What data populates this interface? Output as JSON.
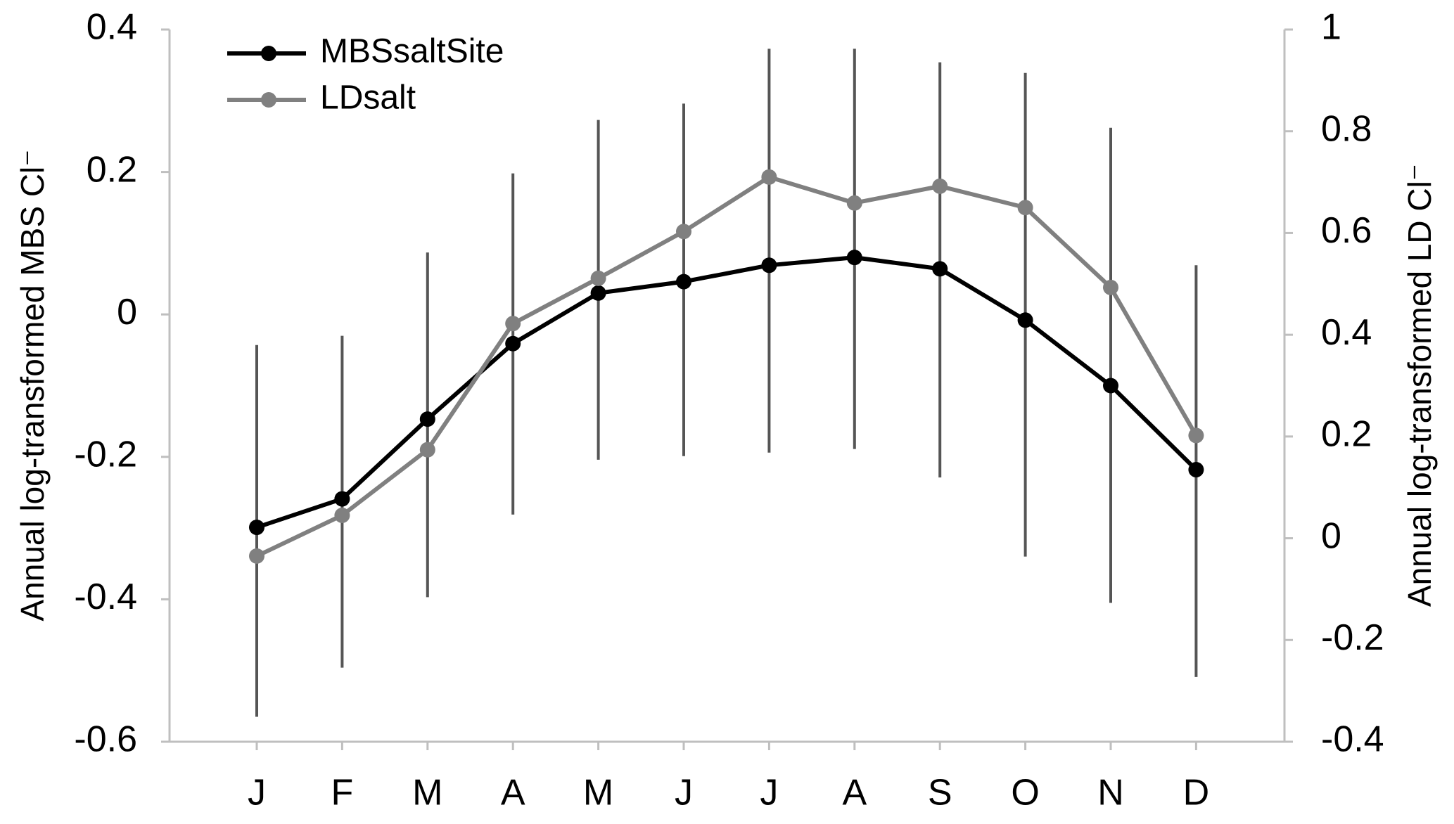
{
  "chart_data": {
    "type": "line",
    "categories": [
      "J",
      "F",
      "M",
      "A",
      "M",
      "J",
      "J",
      "A",
      "S",
      "O",
      "N",
      "D"
    ],
    "y_label": "Annual log-transformed MBS Cl⁻",
    "y2_label": "Annual log-transformed LD Cl⁻",
    "ylim": [
      -0.6,
      0.4
    ],
    "yticks": [
      -0.6,
      -0.4,
      -0.2,
      0,
      0.2,
      0.4
    ],
    "y2lim": [
      -0.4,
      1
    ],
    "y2ticks": [
      -0.4,
      -0.2,
      0,
      0.2,
      0.4,
      0.6,
      0.8,
      1
    ],
    "grid": false,
    "legend": "upper left",
    "series": [
      {
        "name": "MBSsaltSite",
        "color": "#000000",
        "values": [
          -0.299,
          -0.259,
          -0.147,
          -0.041,
          0.03,
          0.046,
          0.069,
          0.08,
          0.064,
          -0.008,
          -0.1,
          -0.218
        ],
        "error_plus": [
          0.256,
          0.229,
          0.234,
          0.239,
          0.243,
          0.25,
          0.304,
          0.293,
          0.29,
          0.347,
          0.362,
          0.287
        ],
        "error_minus": [
          0.266,
          0.237,
          0.25,
          0.24,
          0.234,
          0.245,
          0.263,
          0.269,
          0.293,
          0.332,
          0.305,
          0.291
        ]
      },
      {
        "name": "LDsalt",
        "color": "#808080",
        "axis": "y2",
        "values": [
          -0.035,
          0.045,
          0.174,
          0.422,
          0.511,
          0.603,
          0.71,
          0.659,
          0.692,
          0.65,
          0.493,
          0.202
        ]
      }
    ]
  }
}
